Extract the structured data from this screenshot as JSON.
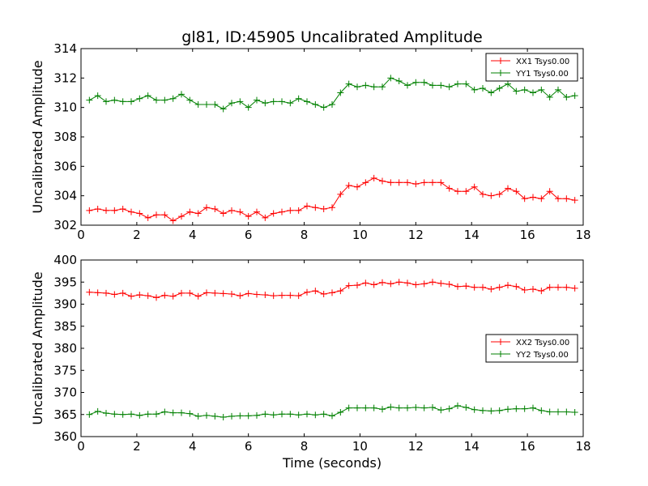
{
  "figure": {
    "title": "gl81, ID:45905 Uncalibrated Amplitude",
    "xlabel": "Time (seconds)",
    "background": "#ffffff"
  },
  "chart_data": [
    {
      "type": "line",
      "ylabel": "Uncalibrated Amplitude",
      "xlim": [
        0,
        18
      ],
      "ylim": [
        302,
        314
      ],
      "xticks": [
        "0",
        "2",
        "4",
        "6",
        "8",
        "10",
        "12",
        "14",
        "16",
        "18"
      ],
      "yticks": [
        "302",
        "304",
        "306",
        "308",
        "310",
        "312",
        "314"
      ],
      "legend_position": "top-right",
      "grid": false,
      "x": [
        0.3,
        0.6,
        0.9,
        1.2,
        1.5,
        1.8,
        2.1,
        2.4,
        2.7,
        3.0,
        3.3,
        3.6,
        3.9,
        4.2,
        4.5,
        4.8,
        5.1,
        5.4,
        5.7,
        6.0,
        6.3,
        6.6,
        6.9,
        7.2,
        7.5,
        7.8,
        8.1,
        8.4,
        8.7,
        9.0,
        9.3,
        9.6,
        9.9,
        10.2,
        10.5,
        10.8,
        11.1,
        11.4,
        11.7,
        12.0,
        12.3,
        12.6,
        12.9,
        13.2,
        13.5,
        13.8,
        14.1,
        14.4,
        14.7,
        15.0,
        15.3,
        15.6,
        15.9,
        16.2,
        16.5,
        16.8,
        17.1,
        17.4,
        17.7
      ],
      "series": [
        {
          "name": "XX1 Tsys0.00",
          "color": "#ff0000",
          "values": [
            303.0,
            303.1,
            303.0,
            303.0,
            303.1,
            302.9,
            302.8,
            302.5,
            302.7,
            302.7,
            302.3,
            302.6,
            302.9,
            302.8,
            303.2,
            303.1,
            302.8,
            303.0,
            302.9,
            302.6,
            302.9,
            302.5,
            302.8,
            302.9,
            303.0,
            303.0,
            303.3,
            303.2,
            303.1,
            303.2,
            304.1,
            304.7,
            304.6,
            304.9,
            305.2,
            305.0,
            304.9,
            304.9,
            304.9,
            304.8,
            304.9,
            304.9,
            304.9,
            304.5,
            304.3,
            304.3,
            304.6,
            304.1,
            304.0,
            304.1,
            304.5,
            304.3,
            303.8,
            303.9,
            303.8,
            304.3,
            303.8,
            303.8,
            303.7
          ]
        },
        {
          "name": "YY1 Tsys0.00",
          "color": "#008000",
          "values": [
            310.5,
            310.8,
            310.4,
            310.5,
            310.4,
            310.4,
            310.6,
            310.8,
            310.5,
            310.5,
            310.6,
            310.9,
            310.5,
            310.2,
            310.2,
            310.2,
            309.9,
            310.3,
            310.4,
            310.0,
            310.5,
            310.3,
            310.4,
            310.4,
            310.3,
            310.6,
            310.4,
            310.2,
            310.0,
            310.2,
            311.0,
            311.6,
            311.4,
            311.5,
            311.4,
            311.4,
            312.0,
            311.8,
            311.5,
            311.7,
            311.7,
            311.5,
            311.5,
            311.4,
            311.6,
            311.6,
            311.2,
            311.3,
            311.0,
            311.3,
            311.6,
            311.1,
            311.2,
            311.0,
            311.2,
            310.7,
            311.2,
            310.7,
            310.8
          ]
        }
      ]
    },
    {
      "type": "line",
      "ylabel": "Uncalibrated Amplitude",
      "xlim": [
        0,
        18
      ],
      "ylim": [
        360,
        400
      ],
      "xticks": [
        "0",
        "2",
        "4",
        "6",
        "8",
        "10",
        "12",
        "14",
        "16",
        "18"
      ],
      "yticks": [
        "360",
        "365",
        "370",
        "375",
        "380",
        "385",
        "390",
        "395",
        "400"
      ],
      "legend_position": "center-right",
      "grid": false,
      "x": [
        0.3,
        0.6,
        0.9,
        1.2,
        1.5,
        1.8,
        2.1,
        2.4,
        2.7,
        3.0,
        3.3,
        3.6,
        3.9,
        4.2,
        4.5,
        4.8,
        5.1,
        5.4,
        5.7,
        6.0,
        6.3,
        6.6,
        6.9,
        7.2,
        7.5,
        7.8,
        8.1,
        8.4,
        8.7,
        9.0,
        9.3,
        9.6,
        9.9,
        10.2,
        10.5,
        10.8,
        11.1,
        11.4,
        11.7,
        12.0,
        12.3,
        12.6,
        12.9,
        13.2,
        13.5,
        13.8,
        14.1,
        14.4,
        14.7,
        15.0,
        15.3,
        15.6,
        15.9,
        16.2,
        16.5,
        16.8,
        17.1,
        17.4,
        17.7
      ],
      "series": [
        {
          "name": "XX2 Tsys0.00",
          "color": "#ff0000",
          "values": [
            392.7,
            392.6,
            392.5,
            392.2,
            392.5,
            391.8,
            392.1,
            391.9,
            391.5,
            392.0,
            391.8,
            392.5,
            392.5,
            391.8,
            392.6,
            392.5,
            392.4,
            392.3,
            391.9,
            392.4,
            392.2,
            392.1,
            391.9,
            392.0,
            392.0,
            391.9,
            392.7,
            393.0,
            392.3,
            392.6,
            393.0,
            394.2,
            394.3,
            394.8,
            394.4,
            394.9,
            394.6,
            395.0,
            394.8,
            394.4,
            394.6,
            395.0,
            394.7,
            394.5,
            394.0,
            394.1,
            393.8,
            393.8,
            393.4,
            393.8,
            394.3,
            394.0,
            393.2,
            393.4,
            393.0,
            393.8,
            393.8,
            393.8,
            393.6
          ]
        },
        {
          "name": "YY2 Tsys0.00",
          "color": "#008000",
          "values": [
            365.0,
            365.7,
            365.3,
            365.1,
            365.0,
            365.1,
            364.8,
            365.1,
            365.1,
            365.6,
            365.4,
            365.4,
            365.2,
            364.6,
            364.8,
            364.6,
            364.4,
            364.6,
            364.7,
            364.7,
            364.8,
            365.1,
            364.9,
            365.1,
            365.1,
            364.9,
            365.1,
            364.9,
            365.1,
            364.7,
            365.5,
            366.5,
            366.5,
            366.5,
            366.5,
            366.2,
            366.7,
            366.5,
            366.5,
            366.6,
            366.5,
            366.6,
            366.0,
            366.3,
            367.0,
            366.6,
            366.1,
            365.9,
            365.8,
            365.9,
            366.2,
            366.3,
            366.3,
            366.5,
            365.9,
            365.6,
            365.6,
            365.6,
            365.5
          ]
        }
      ]
    }
  ]
}
